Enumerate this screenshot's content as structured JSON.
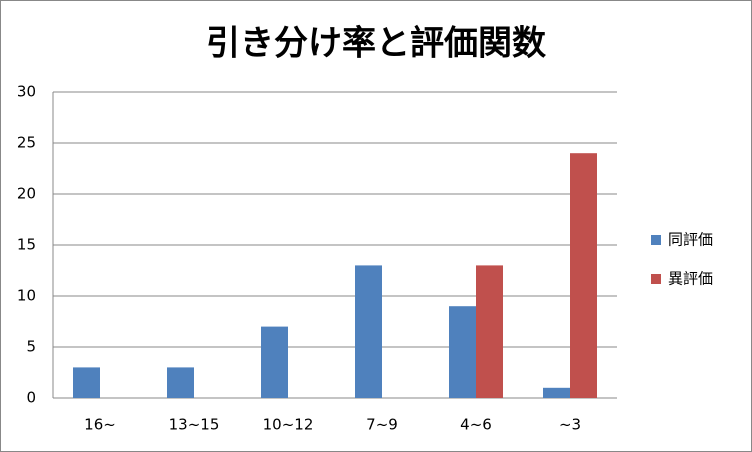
{
  "chart_data": {
    "type": "bar",
    "title": "引き分け率と評価関数",
    "categories": [
      "16~",
      "13~15",
      "10~12",
      "7~9",
      "4~6",
      "~3"
    ],
    "series": [
      {
        "name": "同評価",
        "color": "#4f81bd",
        "values": [
          3,
          3,
          7,
          13,
          9,
          1
        ]
      },
      {
        "name": "異評価",
        "color": "#c0504d",
        "values": [
          0,
          0,
          0,
          0,
          13,
          24
        ]
      }
    ],
    "ylim": [
      0,
      30
    ],
    "yticks": [
      0,
      5,
      10,
      15,
      20,
      25,
      30
    ],
    "grid": true,
    "legend": "right"
  }
}
